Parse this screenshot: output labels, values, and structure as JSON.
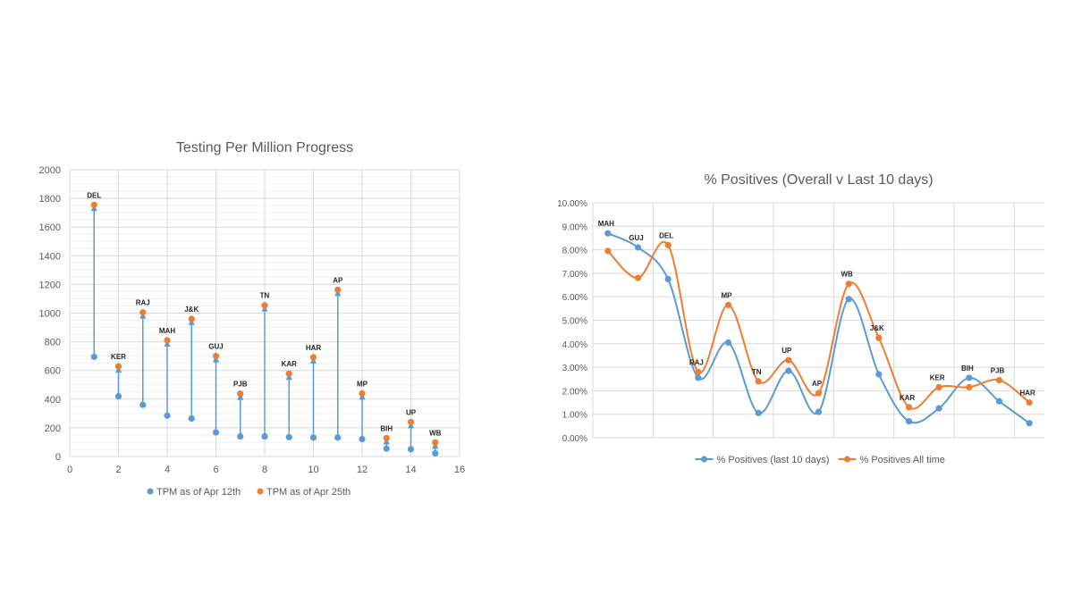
{
  "chart_data": [
    {
      "type": "scatter",
      "title": "Testing Per Million Progress",
      "xlabel": "",
      "ylabel": "",
      "xlim": [
        0,
        16
      ],
      "ylim": [
        0,
        2000
      ],
      "x_ticks": [
        0,
        2,
        4,
        6,
        8,
        10,
        12,
        14,
        16
      ],
      "y_ticks": [
        0,
        200,
        400,
        600,
        800,
        1000,
        1200,
        1400,
        1600,
        1800,
        2000
      ],
      "grid": true,
      "legend_position": "bottom",
      "point_labels": [
        "DEL",
        "KER",
        "RAJ",
        "MAH",
        "J&K",
        "GUJ",
        "PJB",
        "TN",
        "KAR",
        "HAR",
        "AP",
        "MP",
        "BIH",
        "UP",
        "WB"
      ],
      "x": [
        1,
        2,
        3,
        4,
        5,
        6,
        7,
        8,
        9,
        10,
        11,
        12,
        13,
        14,
        15
      ],
      "series": [
        {
          "name": "TPM as of Apr 12th",
          "color": "#5b9bd5",
          "values": [
            695,
            420,
            360,
            285,
            265,
            168,
            140,
            140,
            135,
            132,
            132,
            122,
            55,
            50,
            22
          ]
        },
        {
          "name": "TPM as of Apr 25th",
          "color": "#ed7d31",
          "values": [
            1755,
            628,
            1005,
            810,
            960,
            700,
            438,
            1055,
            578,
            692,
            1163,
            440,
            128,
            240,
            98
          ]
        }
      ]
    },
    {
      "type": "line",
      "title": "% Positives (Overall v Last 10 days)",
      "xlabel": "",
      "ylabel": "",
      "ylim": [
        0,
        10
      ],
      "y_ticks": [
        "0.00%",
        "1.00%",
        "2.00%",
        "3.00%",
        "4.00%",
        "5.00%",
        "6.00%",
        "7.00%",
        "8.00%",
        "9.00%",
        "10.00%"
      ],
      "grid": true,
      "legend_position": "bottom",
      "categories": [
        "MAH",
        "GUJ",
        "DEL",
        "RAJ",
        "MP",
        "TN",
        "UP",
        "AP",
        "WB",
        "J&K",
        "KAR",
        "KER",
        "BIH",
        "PJB",
        "HAR"
      ],
      "series": [
        {
          "name": "% Positives (last 10 days)",
          "color": "#5b9bd5",
          "values": [
            8.7,
            8.1,
            6.75,
            2.55,
            4.05,
            1.05,
            2.85,
            1.1,
            5.9,
            2.7,
            0.7,
            1.25,
            2.55,
            1.55,
            0.62
          ]
        },
        {
          "name": "% Positives All time",
          "color": "#ed7d31",
          "values": [
            7.95,
            6.8,
            8.2,
            2.8,
            5.65,
            2.4,
            3.3,
            1.9,
            6.55,
            4.25,
            1.3,
            2.15,
            2.15,
            2.45,
            1.5
          ]
        }
      ]
    }
  ]
}
